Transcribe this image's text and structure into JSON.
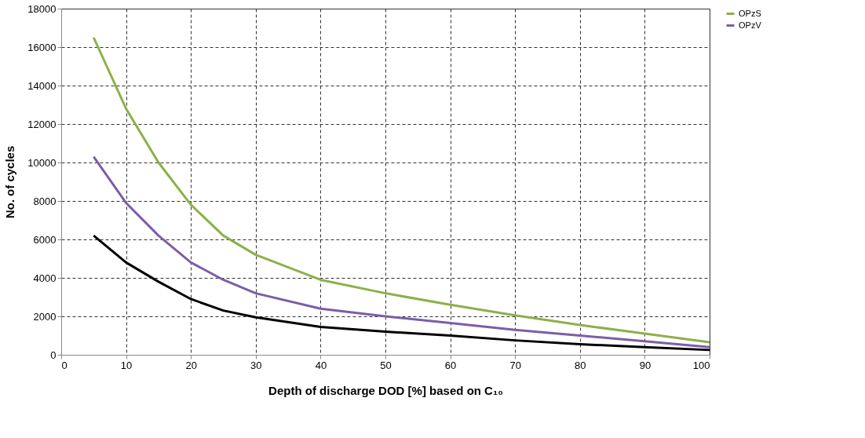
{
  "chart_data": {
    "type": "line",
    "xlabel": "Depth of discharge DOD [%] based on C₁₀",
    "ylabel": "No. of cycles",
    "x": [
      5,
      10,
      15,
      20,
      25,
      30,
      40,
      50,
      60,
      70,
      80,
      90,
      100
    ],
    "series": [
      {
        "name": "OPzS",
        "color": "#8db04a",
        "values": [
          16500,
          12800,
          10000,
          7800,
          6200,
          5200,
          3900,
          3200,
          2600,
          2050,
          1550,
          1100,
          650
        ]
      },
      {
        "name": "OPzV",
        "color": "#7b5ea7",
        "values": [
          10300,
          7900,
          6200,
          4800,
          3900,
          3200,
          2400,
          2000,
          1650,
          1300,
          1000,
          700,
          400
        ]
      },
      {
        "color": "#000000",
        "values": [
          6200,
          4800,
          3800,
          2900,
          2300,
          1950,
          1450,
          1200,
          1000,
          750,
          550,
          400,
          250
        ]
      }
    ],
    "xlim": [
      0,
      100
    ],
    "xticks": [
      0,
      10,
      20,
      30,
      40,
      50,
      60,
      70,
      80,
      90,
      100
    ],
    "ylim": [
      0,
      18000
    ],
    "yticks": [
      0,
      2000,
      4000,
      6000,
      8000,
      10000,
      12000,
      14000,
      16000,
      18000
    ],
    "grid": true,
    "legend": "right",
    "marker": "none",
    "line_style": "solid"
  }
}
